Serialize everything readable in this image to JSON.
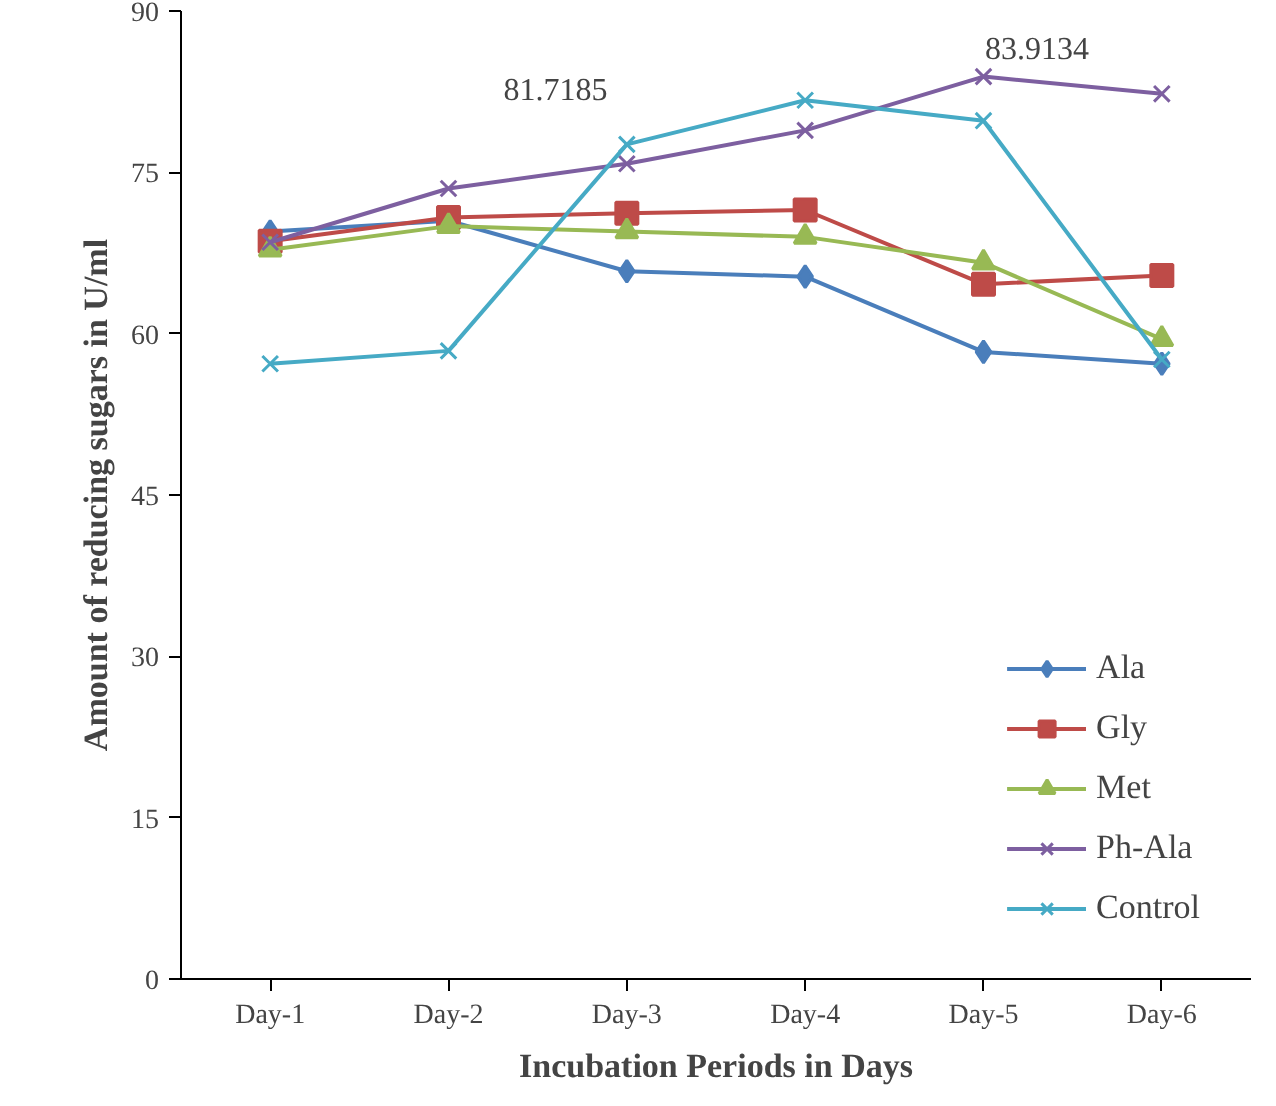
{
  "chart_data": {
    "type": "line",
    "xlabel": "Incubation Periods in Days",
    "ylabel": "Amount of reducing sugars in U/ml",
    "categories": [
      "Day-1",
      "Day-2",
      "Day-3",
      "Day-4",
      "Day-5",
      "Day-6"
    ],
    "series": [
      {
        "name": "Ala",
        "color": "#4a7ebb",
        "marker": "diamond",
        "values": [
          69.5,
          70.5,
          65.8,
          65.3,
          58.3,
          57.2
        ]
      },
      {
        "name": "Gly",
        "color": "#be4b48",
        "marker": "square",
        "values": [
          68.6,
          70.8,
          71.2,
          71.5,
          64.6,
          65.4
        ]
      },
      {
        "name": "Met",
        "color": "#98b954",
        "marker": "triangle",
        "values": [
          67.8,
          70.0,
          69.5,
          69.0,
          66.6,
          59.5
        ]
      },
      {
        "name": "Ph-Ala",
        "color": "#7d5fa0",
        "marker": "cross",
        "values": [
          68.5,
          73.5,
          75.8,
          78.9,
          83.9,
          82.3
        ]
      },
      {
        "name": "Control",
        "color": "#46aac5",
        "marker": "cross",
        "values": [
          57.2,
          58.4,
          77.6,
          81.7,
          79.8,
          57.6
        ]
      }
    ],
    "annotations": [
      "81.7185",
      "83.9134"
    ],
    "ylim": [
      0,
      90
    ],
    "yticks": [
      0,
      15,
      30,
      45,
      60,
      75,
      90
    ],
    "grid": false,
    "legend": "bottom right",
    "line_style": "solid"
  }
}
